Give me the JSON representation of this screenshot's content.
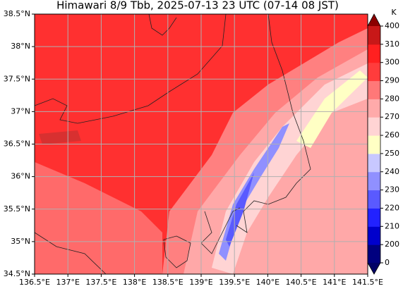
{
  "map": {
    "title": "Himawari 8/9 Tbb, 2025-07-13 23 UTC (07-14 08 JST)",
    "lon_lim": [
      136.5,
      141.5
    ],
    "lat_lim": [
      34.5,
      38.5
    ],
    "lon_ticks": [
      {
        "value": 136.5,
        "label": "136.5°E"
      },
      {
        "value": 137,
        "label": "137°E"
      },
      {
        "value": 137.5,
        "label": "137.5°E"
      },
      {
        "value": 138,
        "label": "138°E"
      },
      {
        "value": 138.5,
        "label": "138.5°E"
      },
      {
        "value": 139,
        "label": "139°E"
      },
      {
        "value": 139.5,
        "label": "139.5°E"
      },
      {
        "value": 140,
        "label": "140°E"
      },
      {
        "value": 140.5,
        "label": "140.5°E"
      },
      {
        "value": 141,
        "label": "141°E"
      },
      {
        "value": 141.5,
        "label": "141.5°E"
      }
    ],
    "lat_ticks": [
      {
        "value": 34.5,
        "label": "34.5°N"
      },
      {
        "value": 35,
        "label": "35°N"
      },
      {
        "value": 35.5,
        "label": "35.5°N"
      },
      {
        "value": 36,
        "label": "36°N"
      },
      {
        "value": 36.5,
        "label": "36.5°N"
      },
      {
        "value": 37,
        "label": "37°N"
      },
      {
        "value": 37.5,
        "label": "37.5°N"
      },
      {
        "value": 38,
        "label": "38°N"
      },
      {
        "value": 38.5,
        "label": "38.5°N"
      }
    ],
    "grid": true,
    "colorbar": {
      "unit": "K",
      "levels": [
        0,
        200,
        210,
        220,
        230,
        240,
        250,
        260,
        270,
        280,
        290,
        300,
        310,
        400
      ],
      "colors": [
        "#00007f",
        "#0000cc",
        "#2222ff",
        "#5a5aff",
        "#9090ff",
        "#c8c8ff",
        "#ffffc4",
        "#ffd4d4",
        "#ffaaaa",
        "#ff7878",
        "#ff3c3c",
        "#ff2020",
        "#c81818"
      ],
      "under_color": "#000066",
      "over_color": "#8b0000"
    }
  }
}
